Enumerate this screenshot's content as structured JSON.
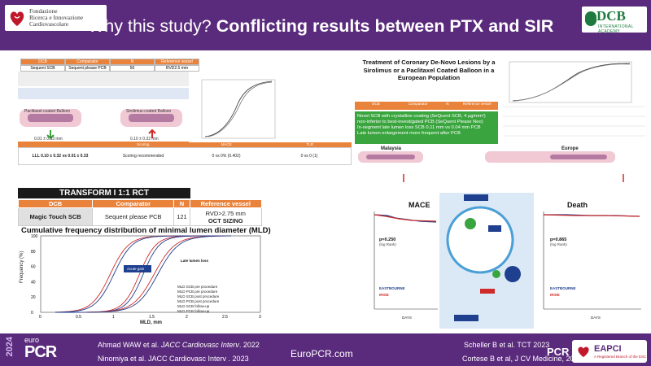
{
  "header": {
    "title_regular": "Why this study? ",
    "title_bold": "Conflicting results between PTX and SIR",
    "logo_left_lines": [
      "Fondazione",
      "Ricerca e Innovazione",
      "Cardiovascolare"
    ],
    "logo_right_main": "DCB",
    "logo_right_sub": "INTERNATIONAL ACADEMY"
  },
  "left_top": {
    "table_headers": [
      "DCB",
      "Comparator",
      "N",
      "Reference vessel"
    ],
    "table_row": [
      "Sequent SCB",
      "Sequent please PCB",
      "50",
      "RVD2.5 mm"
    ],
    "label_left": "Paclitaxel-coated Balloon",
    "label_right": "Sirolimus-coated Balloon",
    "value_left": "0.01 ± 0.33 mm",
    "value_right": "0.10 ± 0.32 mm",
    "bottom_headers": [
      "",
      "Scoring",
      "MACE",
      "TLR"
    ],
    "bottom_row": [
      "LLL 0.10 ± 0.32 vs 0.01 ± 0.33",
      "Scoring recommended",
      "0 vs 0% (0.402)",
      "0 vs 0 (1)"
    ]
  },
  "transform": {
    "title": "TRANSFORM I 1:1 RCT",
    "headers": [
      "DCB",
      "Comparator",
      "N",
      "Reference vessel"
    ],
    "row": {
      "dcb": "Magic Touch SCB",
      "comparator": "Sequent please PCB",
      "n": "121",
      "rvd": "RVD>2.75 mm",
      "oct": "OCT SIZING"
    }
  },
  "cf_chart": {
    "title": "Cumulative frequency distribution of minimal lumen diameter (MLD)",
    "ylabel": "Frequency (%)",
    "xlabel": "MLD, mm",
    "x_ticks": [
      "0",
      "0.5",
      "1",
      "1.5",
      "2",
      "2.5",
      "3"
    ],
    "y_ticks": [
      "0",
      "20",
      "40",
      "60",
      "80",
      "100"
    ],
    "legend": [
      "MLD SCB pre procedure",
      "MLD PCB pre procedure",
      "MLD SCB post procedure",
      "MLD PCB post procedure",
      "MLD SCB follow-up",
      "MLD PCB follow-up"
    ],
    "annotations": [
      "Acute gain",
      "Late lumen loss"
    ]
  },
  "right_top": {
    "paper_title": "Treatment of Coronary De-Novo Lesions by a Sirolimus or a Paclitaxel Coated Balloon in a European Population",
    "bullets": [
      "Novel SCB with crystalline coating (SeQuent SCB, 4 µg/mm²) non-inferior to best-investigated PCB (SeQuent Please Neo)",
      "In-segment late lumen loss SCB 0.11 mm vs 0.04 mm PCB",
      "Late lumen enlargement more frequent after PCB"
    ],
    "region_labels": [
      "Malaysia",
      "Europe"
    ]
  },
  "mace_chart": {
    "title": "MACE",
    "p_value": "p=0.250",
    "test": "(log Rank)",
    "legend": [
      "EASTBOURNE",
      "IRISE"
    ],
    "xlabel": "DAYS"
  },
  "death_chart": {
    "title": "Death",
    "p_value": "p=0.865",
    "test": "(log Rank)",
    "legend": [
      "EASTBOURNE",
      "IRISE"
    ],
    "xlabel": "DAYS"
  },
  "footer": {
    "year": "2024",
    "euro": "euro",
    "pcr": "PCR",
    "ref1_plain": "Ahmad WAW et al. ",
    "ref1_italic": "JACC Cardiovasc Interv",
    "ref1_end": ". 2022",
    "ref2": "Ninomiya et al. JACC Cardiovasc Interv . 2023",
    "center": "EuroPCR.com",
    "ref3": "Scheller B et al. TCT 2023",
    "ref4": "Cortese B et al, J CV Medicine, 2021",
    "eapci": "EAPCI",
    "eapci_sub": "A Registered Branch of the ESC"
  },
  "colors": {
    "brand_purple": "#5a2a7c",
    "orange": "#e9833c",
    "green": "#3aa53e",
    "red": "#d02b2b",
    "blue": "#1f3f8f"
  }
}
